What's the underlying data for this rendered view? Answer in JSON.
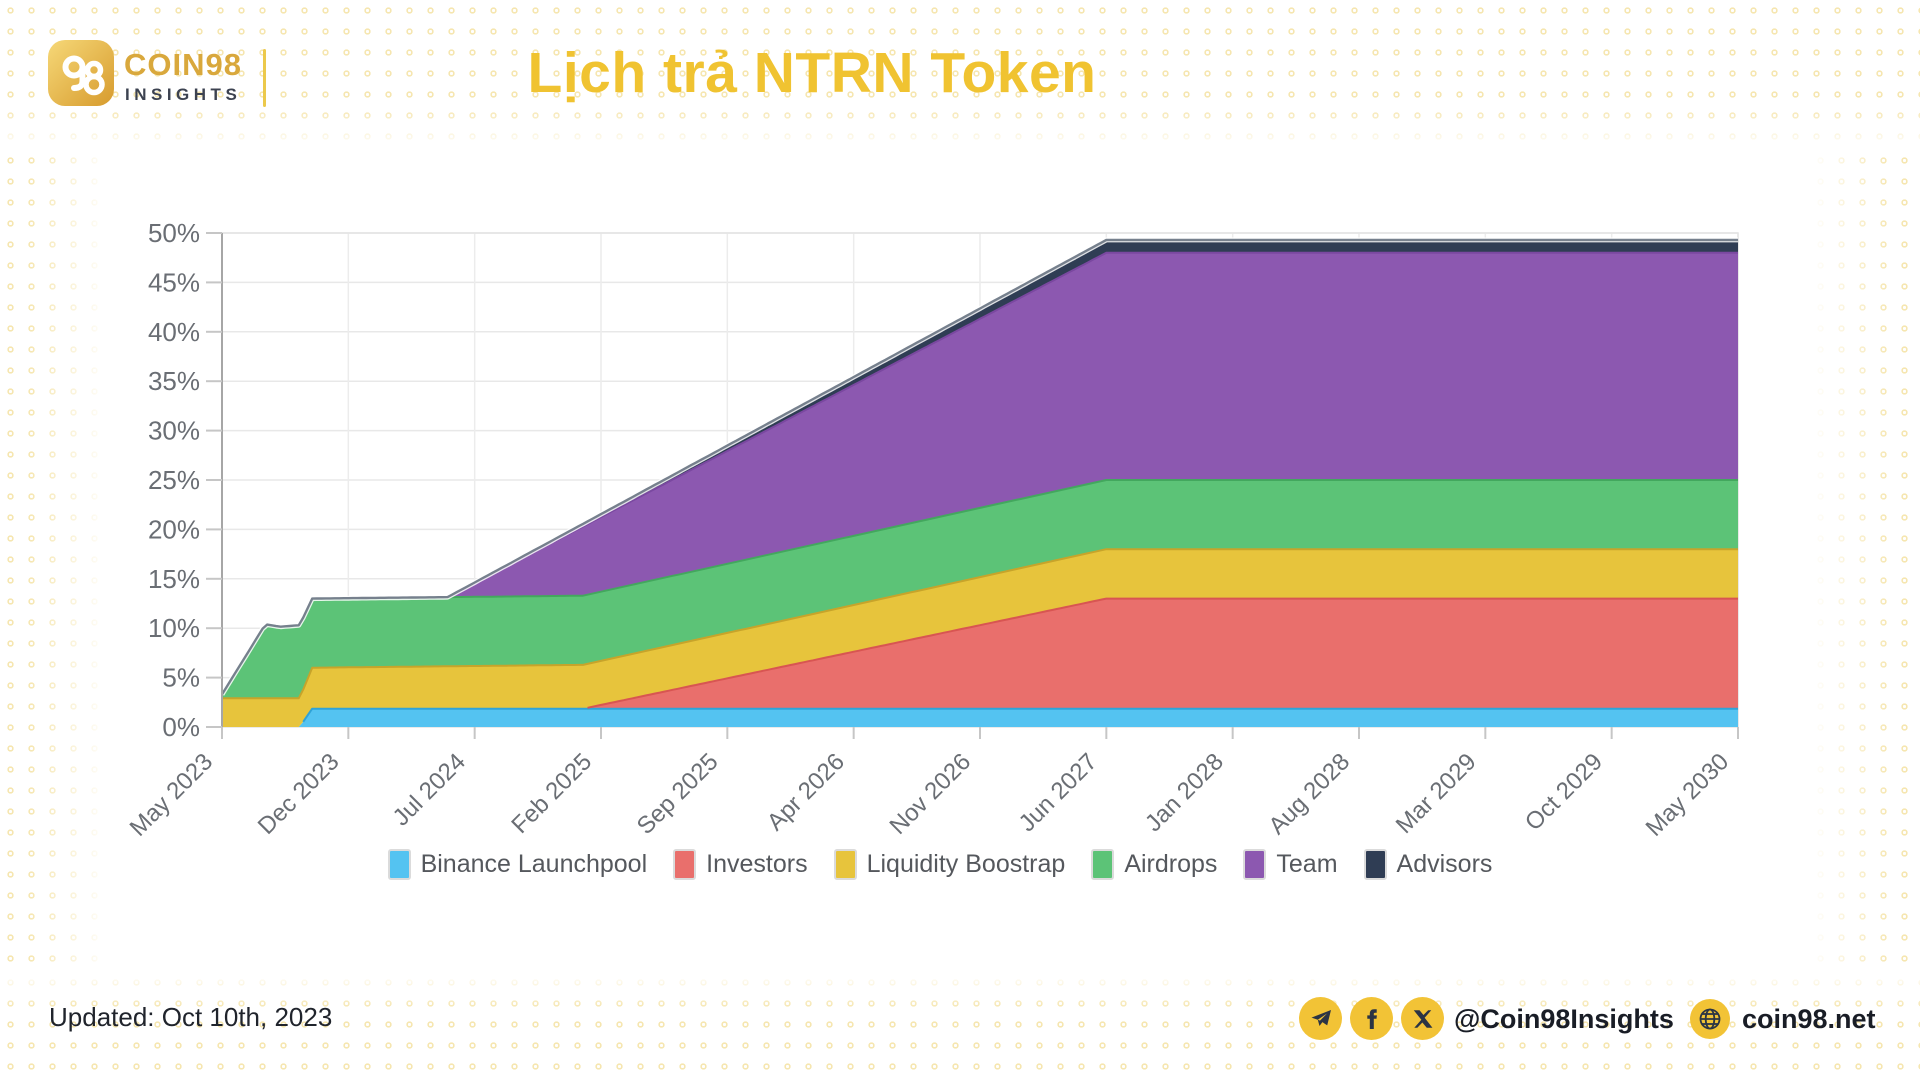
{
  "header": {
    "brand": "COIN98",
    "brand_sub": "INSIGHTS",
    "title": "Lịch trả NTRN Token"
  },
  "footer": {
    "updated": "Updated: Oct 10th, 2023",
    "social_handle": "@Coin98Insights",
    "website": "coin98.net"
  },
  "colors": {
    "accent_gold": "#F0C331",
    "dot_pattern": "#E9C443",
    "axis_text": "#6A6E74",
    "legend_text": "#55585D",
    "grid_line": "#E8E8E8",
    "top_edge_stroke": "#76808D"
  },
  "chart_data": {
    "type": "area",
    "stacked": true,
    "title": "Lịch trả NTRN Token",
    "xlabel": "",
    "ylabel": "",
    "ylim": [
      0,
      50
    ],
    "grid": true,
    "legend_position": "bottom",
    "x_unit": "months since May 2023",
    "x_range_months": [
      0,
      84
    ],
    "x_tick_months": [
      0,
      7,
      14,
      21,
      28,
      35,
      42,
      49,
      56,
      63,
      70,
      77,
      84
    ],
    "x_tick_labels": [
      "May 2023",
      "Dec 2023",
      "Jul 2024",
      "Feb 2025",
      "Sep 2025",
      "Apr 2026",
      "Nov 2026",
      "Jun 2027",
      "Jan 2028",
      "Aug 2028",
      "Mar 2029",
      "Oct 2029",
      "May 2030"
    ],
    "y_tick_values": [
      0,
      5,
      10,
      15,
      20,
      25,
      30,
      35,
      40,
      45,
      50
    ],
    "y_tick_labels": [
      "0%",
      "5%",
      "10%",
      "15%",
      "20%",
      "25%",
      "30%",
      "35%",
      "40%",
      "45%",
      "50%"
    ],
    "series_note": "values in % of total supply unlocked; points are [month, value] breakpoints, linear in between; series are stacked bottom-to-top in listed order",
    "series": [
      {
        "name": "Binance Launchpool",
        "color": "#54C3F1",
        "stroke": "#2FA3D7",
        "points": [
          [
            0,
            0
          ],
          [
            4.3,
            0
          ],
          [
            5,
            1.85
          ],
          [
            84,
            1.85
          ]
        ]
      },
      {
        "name": "Investors",
        "color": "#E96F6C",
        "stroke": "#D85552",
        "points": [
          [
            0,
            0
          ],
          [
            20,
            0
          ],
          [
            49,
            11.15
          ],
          [
            84,
            11.15
          ]
        ]
      },
      {
        "name": "Liquidity Boostrap",
        "color": "#E7C43C",
        "stroke": "#C7A42A",
        "points": [
          [
            0,
            2.9
          ],
          [
            4.3,
            2.9
          ],
          [
            5,
            4.15
          ],
          [
            49,
            5
          ],
          [
            84,
            5
          ]
        ]
      },
      {
        "name": "Airdrops",
        "color": "#5CC377",
        "stroke": "#43A75E",
        "points": [
          [
            0,
            0.4
          ],
          [
            2.4,
            7.5
          ],
          [
            3.2,
            7.25
          ],
          [
            4.3,
            7.4
          ],
          [
            5,
            7
          ],
          [
            84,
            7
          ]
        ]
      },
      {
        "name": "Team",
        "color": "#8C58B0",
        "stroke": "#7A48A0",
        "points": [
          [
            0,
            0
          ],
          [
            12.5,
            0
          ],
          [
            20,
            7
          ],
          [
            49,
            23
          ],
          [
            84,
            23
          ]
        ]
      },
      {
        "name": "Advisors",
        "color": "#2F3D54",
        "stroke": "#26334A",
        "points": [
          [
            0,
            0
          ],
          [
            12.5,
            0
          ],
          [
            49,
            1.3
          ],
          [
            84,
            1.3
          ]
        ]
      }
    ]
  }
}
